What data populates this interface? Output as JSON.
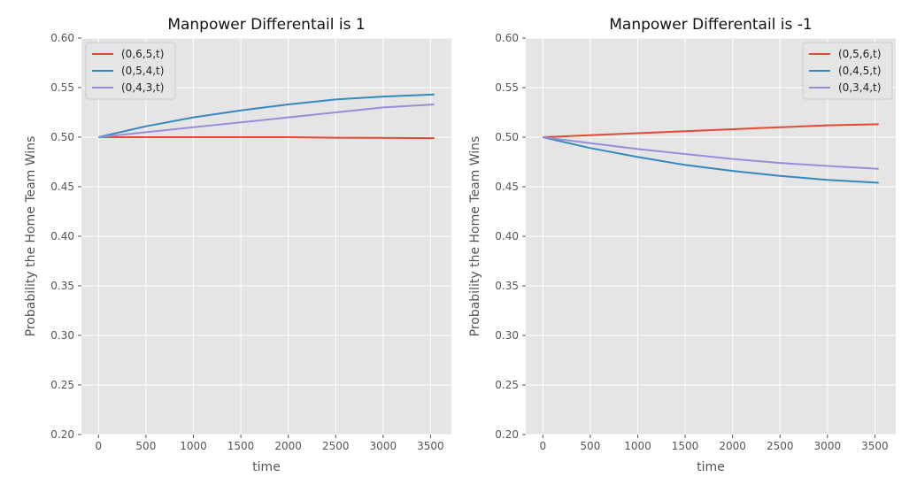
{
  "chart_data": [
    {
      "type": "line",
      "title": "Manpower Differentail is 1",
      "xlabel": "time",
      "ylabel": "Probability the Home Team Wins",
      "xlim": [
        -180,
        3720
      ],
      "ylim": [
        0.2,
        0.6
      ],
      "xticks": [
        "0",
        "500",
        "1000",
        "1500",
        "2000",
        "2500",
        "3000",
        "3500"
      ],
      "yticks": [
        "0.20",
        "0.25",
        "0.30",
        "0.35",
        "0.40",
        "0.45",
        "0.50",
        "0.55",
        "0.60"
      ],
      "grid": true,
      "legend_position": "top-left",
      "x": [
        0,
        500,
        1000,
        1500,
        2000,
        2500,
        3000,
        3540
      ],
      "series": [
        {
          "name": "(0,6,5,t)",
          "color": "#e24a33",
          "values": [
            0.5,
            0.5,
            0.5,
            0.5,
            0.5,
            0.4995,
            0.4993,
            0.499
          ]
        },
        {
          "name": "(0,5,4,t)",
          "color": "#348abd",
          "values": [
            0.5,
            0.511,
            0.52,
            0.527,
            0.533,
            0.538,
            0.541,
            0.543
          ]
        },
        {
          "name": "(0,4,3,t)",
          "color": "#988ed5",
          "values": [
            0.5,
            0.505,
            0.51,
            0.515,
            0.52,
            0.525,
            0.53,
            0.533
          ]
        }
      ]
    },
    {
      "type": "line",
      "title": "Manpower Differentail is -1",
      "xlabel": "time",
      "ylabel": "Probability the Home Team Wins",
      "xlim": [
        -180,
        3720
      ],
      "ylim": [
        0.2,
        0.6
      ],
      "xticks": [
        "0",
        "500",
        "1000",
        "1500",
        "2000",
        "2500",
        "3000",
        "3500"
      ],
      "yticks": [
        "0.20",
        "0.25",
        "0.30",
        "0.35",
        "0.40",
        "0.45",
        "0.50",
        "0.55",
        "0.60"
      ],
      "grid": true,
      "legend_position": "top-right",
      "x": [
        0,
        500,
        1000,
        1500,
        2000,
        2500,
        3000,
        3540
      ],
      "series": [
        {
          "name": "(0,5,6,t)",
          "color": "#e24a33",
          "values": [
            0.5,
            0.502,
            0.504,
            0.506,
            0.508,
            0.51,
            0.512,
            0.513
          ]
        },
        {
          "name": "(0,4,5,t)",
          "color": "#348abd",
          "values": [
            0.5,
            0.489,
            0.48,
            0.472,
            0.466,
            0.461,
            0.457,
            0.454
          ]
        },
        {
          "name": "(0,3,4,t)",
          "color": "#988ed5",
          "values": [
            0.5,
            0.494,
            0.488,
            0.483,
            0.478,
            0.474,
            0.471,
            0.468
          ]
        }
      ]
    }
  ]
}
